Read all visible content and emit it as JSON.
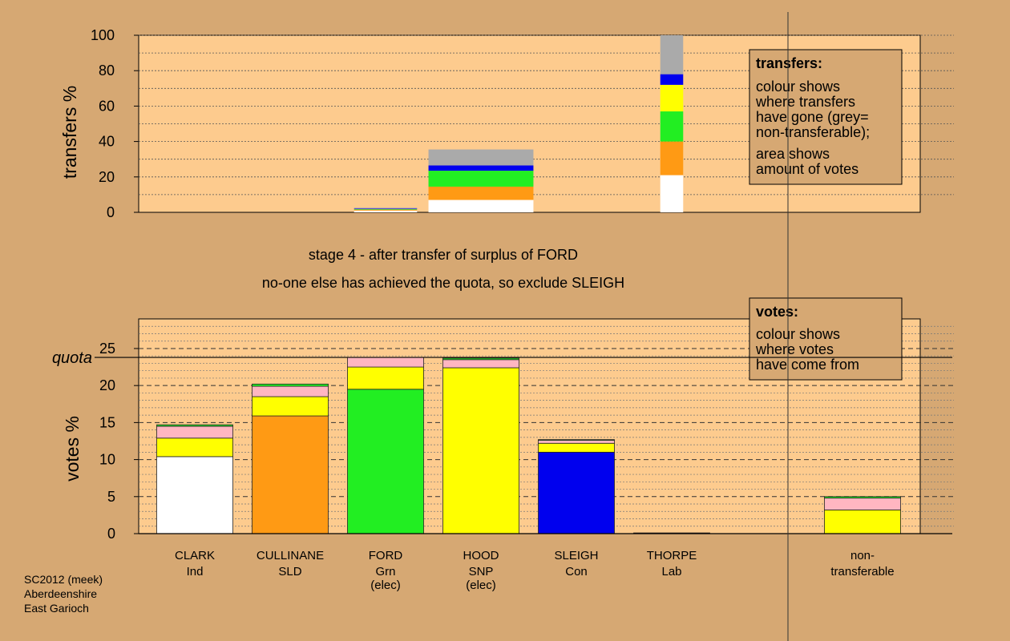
{
  "stage_text": {
    "line1": "stage 4 - after transfer of surplus of FORD",
    "line2": "no-one else has achieved the quota, so exclude SLEIGH"
  },
  "footer": {
    "line1": "SC2012 (meek)",
    "line2": "Aberdeenshire",
    "line3": "East Garioch"
  },
  "legend_transfers": {
    "title": "transfers:",
    "body": [
      "colour shows",
      "where transfers",
      "have gone (grey=",
      "non-transferable);"
    ],
    "body2": [
      "area shows",
      "amount of votes"
    ]
  },
  "legend_votes": {
    "title": "votes:",
    "body": [
      "colour shows",
      "where votes",
      "have come from"
    ]
  },
  "colors": {
    "background": "#d6a873",
    "panel": "#fdcb8e",
    "CLARK": "#ffffff",
    "CULLINANE": "#ff9a14",
    "FORD": "#22ee22",
    "HOOD": "#ffff00",
    "SLEIGH": "#0000ee",
    "THORPE": "#ff0000",
    "later": "#ffb6c1",
    "nontransferable": "#aaaaaa"
  },
  "chart_data": [
    {
      "type": "bar",
      "name": "transfers",
      "ylabel": "transfers %",
      "ylim": [
        0,
        100
      ],
      "yticks": [
        0,
        20,
        40,
        60,
        80,
        100
      ],
      "stack_order": [
        "CLARK",
        "CULLINANE",
        "FORD",
        "HOOD",
        "SLEIGH",
        "nontransferable"
      ],
      "bars": [
        {
          "slot": 3,
          "half_width": 0.33,
          "segments": [
            {
              "party": "CLARK",
              "value": 1.0
            },
            {
              "party": "CULLINANE",
              "value": 0.5
            },
            {
              "party": "FORD",
              "value": 0.3
            },
            {
              "party": "SLEIGH",
              "value": 0.3
            },
            {
              "party": "nontransferable",
              "value": 0.5
            }
          ]
        },
        {
          "slot": 4,
          "half_width": 0.55,
          "segments": [
            {
              "party": "CLARK",
              "value": 7
            },
            {
              "party": "CULLINANE",
              "value": 7.5
            },
            {
              "party": "FORD",
              "value": 9
            },
            {
              "party": "SLEIGH",
              "value": 3
            },
            {
              "party": "nontransferable",
              "value": 9
            }
          ]
        },
        {
          "slot": 6,
          "half_width": 0.12,
          "segments": [
            {
              "party": "CLARK",
              "value": 21
            },
            {
              "party": "CULLINANE",
              "value": 19
            },
            {
              "party": "FORD",
              "value": 17
            },
            {
              "party": "HOOD",
              "value": 15
            },
            {
              "party": "SLEIGH",
              "value": 6
            },
            {
              "party": "nontransferable",
              "value": 22
            }
          ]
        }
      ]
    },
    {
      "type": "bar",
      "name": "votes",
      "ylabel": "votes %",
      "ylim": [
        0,
        29
      ],
      "yticks": [
        0,
        5,
        10,
        15,
        20,
        25
      ],
      "quota": 23.8,
      "quota_label": "quota",
      "categories": [
        {
          "name": "CLARK",
          "sub1": "Ind",
          "sub2": ""
        },
        {
          "name": "CULLINANE",
          "sub1": "SLD",
          "sub2": ""
        },
        {
          "name": "FORD",
          "sub1": "Grn",
          "sub2": "(elec)"
        },
        {
          "name": "HOOD",
          "sub1": "SNP",
          "sub2": "(elec)"
        },
        {
          "name": "SLEIGH",
          "sub1": "Con",
          "sub2": ""
        },
        {
          "name": "THORPE",
          "sub1": "Lab",
          "sub2": ""
        },
        {
          "name": "non-",
          "sub1": "transferable",
          "sub2": ""
        }
      ],
      "bars": [
        {
          "slot": 1,
          "segments": [
            {
              "party": "CLARK",
              "value": 10.4
            },
            {
              "party": "HOOD",
              "value": 2.5
            },
            {
              "party": "later",
              "value": 1.6
            },
            {
              "party": "FORD",
              "value": 0.2
            }
          ]
        },
        {
          "slot": 2,
          "segments": [
            {
              "party": "CULLINANE",
              "value": 15.9
            },
            {
              "party": "HOOD",
              "value": 2.6
            },
            {
              "party": "later",
              "value": 1.4
            },
            {
              "party": "FORD",
              "value": 0.3
            }
          ]
        },
        {
          "slot": 3,
          "segments": [
            {
              "party": "FORD",
              "value": 19.5
            },
            {
              "party": "HOOD",
              "value": 3.0
            },
            {
              "party": "later",
              "value": 1.3
            }
          ]
        },
        {
          "slot": 4,
          "segments": [
            {
              "party": "HOOD",
              "value": 22.4
            },
            {
              "party": "later",
              "value": 1.1
            },
            {
              "party": "FORD",
              "value": 0.2
            }
          ]
        },
        {
          "slot": 5,
          "segments": [
            {
              "party": "SLEIGH",
              "value": 11.0
            },
            {
              "party": "HOOD",
              "value": 1.2
            },
            {
              "party": "later",
              "value": 0.4
            },
            {
              "party": "FORD",
              "value": 0.1
            }
          ]
        },
        {
          "slot": 6,
          "segments": [
            {
              "party": "THORPE",
              "value": 0.1
            }
          ]
        },
        {
          "slot": 8,
          "segments": [
            {
              "party": "HOOD",
              "value": 3.2
            },
            {
              "party": "later",
              "value": 1.6
            },
            {
              "party": "FORD",
              "value": 0.2
            }
          ]
        }
      ]
    }
  ]
}
